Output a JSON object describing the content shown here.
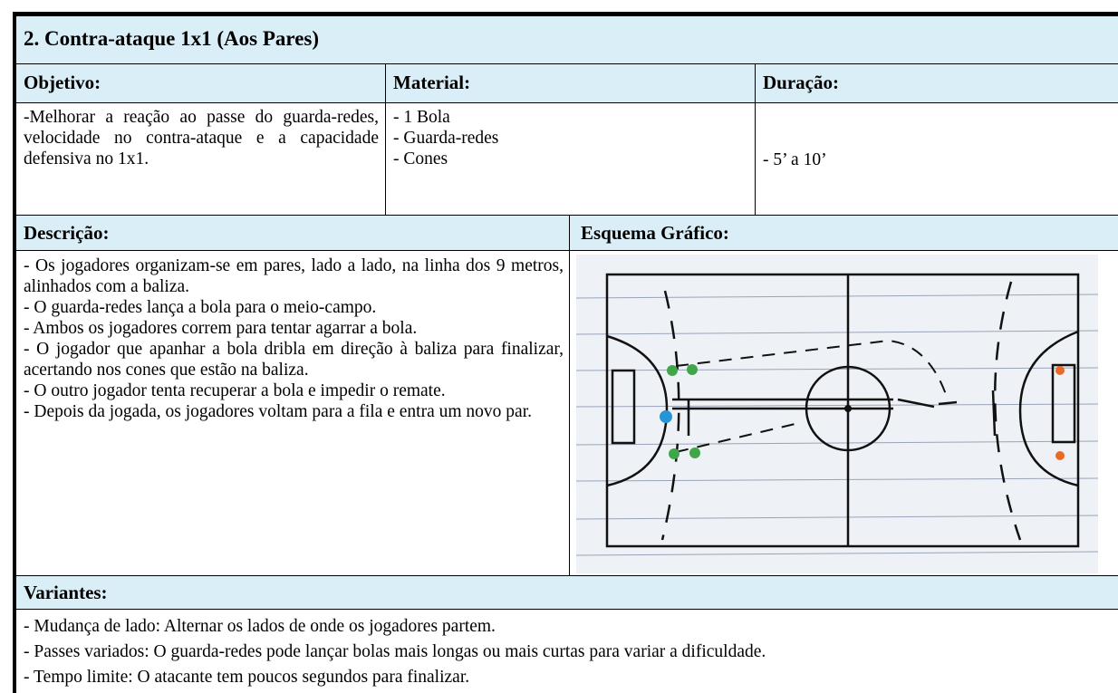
{
  "header": {
    "title": "2. Contra-ataque 1x1 (Aos Pares)"
  },
  "objetivo": {
    "label": "Objetivo:",
    "text": "-Melhorar a reação ao passe do guarda-redes, velocidade no contra-ataque e a capacidade defensiva no 1x1."
  },
  "material": {
    "label": "Material:",
    "items": [
      "- 1 Bola",
      "- Guarda-redes",
      "- Cones"
    ]
  },
  "duracao": {
    "label": "Duração:",
    "text": "- 5’ a 10’"
  },
  "descricao": {
    "label": "Descrição:",
    "items": [
      "- Os jogadores organizam-se em pares, lado a lado, na linha dos 9 metros, alinhados com a baliza.",
      "-  O guarda-redes lança a bola para o meio-campo.",
      "- Ambos os jogadores correm para tentar agarrar a bola.",
      "- O jogador que apanhar a bola dribla em direção à baliza para finalizar, acertando nos cones que estão na baliza.",
      "- O outro jogador tenta recuperar a bola e impedir o remate.",
      "- Depois da jogada, os jogadores voltam para a fila e entra um novo par."
    ]
  },
  "esquema": {
    "label": "Esquema Gráfico:"
  },
  "variantes": {
    "label": "Variantes:",
    "items": [
      "- Mudança de lado: Alternar os lados de onde os jogadores partem.",
      "- Passes variados: O guarda-redes pode lançar bolas mais longas ou mais curtas para variar a dificuldade.",
      "- Tempo limite: O atacante tem poucos segundos para finalizar."
    ]
  }
}
